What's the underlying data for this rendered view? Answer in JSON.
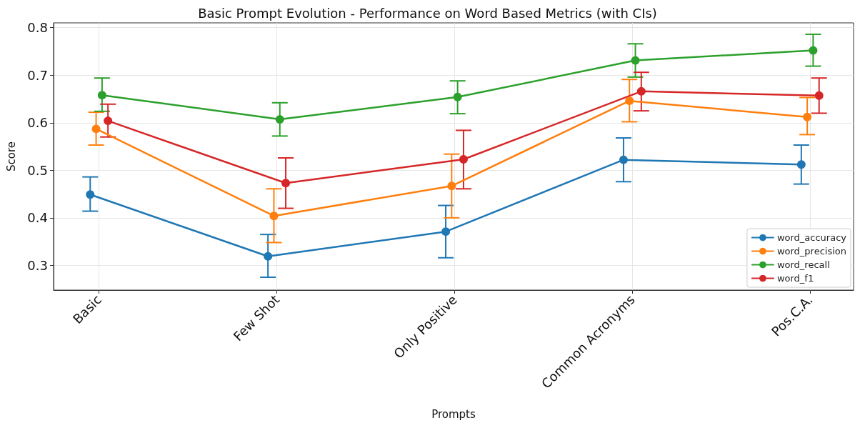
{
  "chart_data": {
    "type": "line",
    "title": "Basic Prompt Evolution - Performance on Word Based Metrics (with CIs)",
    "xlabel": "Prompts",
    "ylabel": "Score",
    "categories": [
      "Basic",
      "Few Shot",
      "Only Positive",
      "Common Acronyms",
      "Pos.C.A."
    ],
    "ylim": [
      0.248,
      0.81
    ],
    "yticks": [
      0.3,
      0.4,
      0.5,
      0.6,
      0.7,
      0.8
    ],
    "grid": true,
    "legend": "bottom right",
    "marker": "circle",
    "line_style": "solid",
    "series": [
      {
        "name": "word_accuracy",
        "color": "#1f77b4",
        "values": [
          0.449,
          0.319,
          0.371,
          0.522,
          0.512
        ],
        "errors": [
          [
            0.414,
            0.486
          ],
          [
            0.275,
            0.365
          ],
          [
            0.316,
            0.426
          ],
          [
            0.476,
            0.568
          ],
          [
            0.471,
            0.553
          ]
        ]
      },
      {
        "name": "word_precision",
        "color": "#ff7f0e",
        "values": [
          0.587,
          0.404,
          0.467,
          0.646,
          0.612
        ],
        "errors": [
          [
            0.553,
            0.622
          ],
          [
            0.348,
            0.461
          ],
          [
            0.4,
            0.534
          ],
          [
            0.602,
            0.691
          ],
          [
            0.575,
            0.653
          ]
        ]
      },
      {
        "name": "word_recall",
        "color": "#2ca02c",
        "values": [
          0.658,
          0.607,
          0.654,
          0.731,
          0.752
        ],
        "errors": [
          [
            0.624,
            0.694
          ],
          [
            0.572,
            0.642
          ],
          [
            0.619,
            0.688
          ],
          [
            0.696,
            0.766
          ],
          [
            0.719,
            0.786
          ]
        ]
      },
      {
        "name": "word_f1",
        "color": "#d62728",
        "values": [
          0.604,
          0.473,
          0.523,
          0.666,
          0.657
        ],
        "errors": [
          [
            0.57,
            0.639
          ],
          [
            0.42,
            0.526
          ],
          [
            0.461,
            0.584
          ],
          [
            0.625,
            0.706
          ],
          [
            0.62,
            0.694
          ]
        ]
      }
    ]
  }
}
